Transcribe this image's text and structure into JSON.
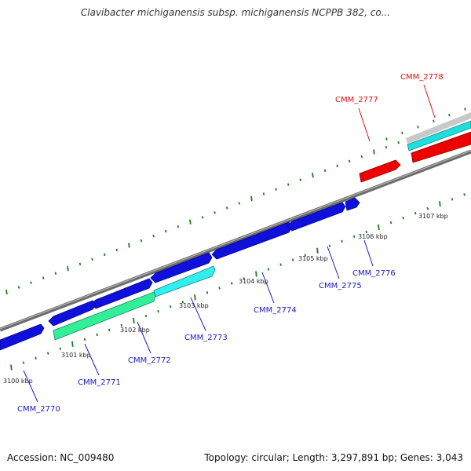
{
  "title": "Clavibacter michiganensis subsp. michiganensis NCPPB 382, co...",
  "footer": {
    "accession": "Accession: NC_009480",
    "stats": "Topology: circular; Length: 3,297,891 bp; Genes: 3,043"
  },
  "colors": {
    "gene_blue": "#1010dd",
    "gene_red": "#ee0000",
    "gene_cyan": "#33eeee",
    "gene_green": "#33ee99",
    "backbone": "#808080",
    "tick": "#1e7a1e",
    "label_blue": "#1a1ac8",
    "label_red": "#dd1111"
  },
  "kbp_ticks": [
    "3100 kbp",
    "3101 kbp",
    "3102 kbp",
    "3103 kbp",
    "3104 kbp",
    "3105 kbp",
    "3106 kbp",
    "3107 kbp"
  ],
  "genes": [
    {
      "name": "CMM_2770",
      "color": "blue",
      "strand": "reverse"
    },
    {
      "name": "CMM_2771",
      "color": "blue",
      "strand": "reverse"
    },
    {
      "name": "CMM_2772",
      "color": "green",
      "strand": "forward"
    },
    {
      "name": "CMM_2773",
      "color": "cyan",
      "strand": "forward"
    },
    {
      "name": "CMM_2774",
      "color": "blue",
      "strand": "reverse"
    },
    {
      "name": "CMM_2775",
      "color": "blue",
      "strand": "reverse"
    },
    {
      "name": "CMM_2776",
      "color": "blue",
      "strand": "reverse"
    },
    {
      "name": "CMM_2777",
      "color": "red",
      "strand": "forward"
    },
    {
      "name": "CMM_2778",
      "color": "red",
      "strand": "forward"
    }
  ]
}
